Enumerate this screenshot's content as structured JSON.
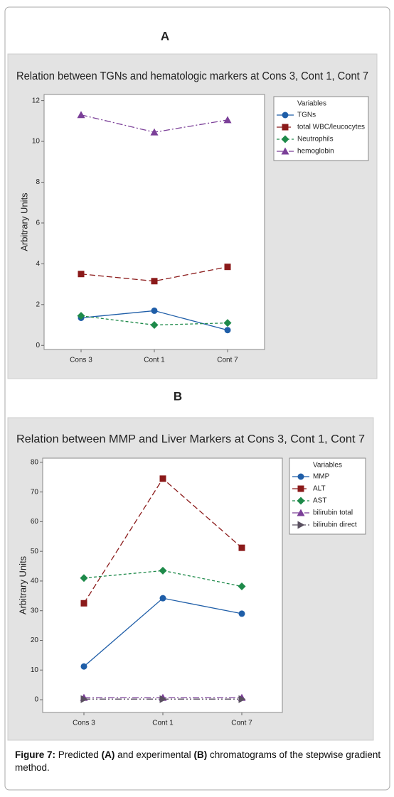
{
  "panel_labels": [
    "A",
    "B"
  ],
  "caption": [
    "Figure 7:",
    "Predicted",
    "(A)",
    "and experimental",
    "(B)",
    "chromatograms of the stepwise gradient method."
  ],
  "chart_data": [
    {
      "type": "line",
      "title": "Relation between TGNs and hematologic markers at Cons 3, Cont 1, Cont 7",
      "y_label": "Arbitrary Units",
      "legend_title": "Variables",
      "legend": "upper right",
      "categories": [
        "Cons 3",
        "Cont 1",
        "Cont 7"
      ],
      "ylim": [
        -0.2,
        12.3
      ],
      "yticks": [
        0,
        2,
        4,
        6,
        8,
        10,
        12
      ],
      "series": [
        {
          "name": "TGNs",
          "color": "#1f5ea8",
          "marker": "circle",
          "dash": "solid",
          "values": [
            1.35,
            1.7,
            0.75
          ]
        },
        {
          "name": "total WBC/leucocytes",
          "color": "#8b1a1a",
          "marker": "square",
          "dash": "dashed",
          "values": [
            3.5,
            3.15,
            3.85
          ]
        },
        {
          "name": "Neutrophils",
          "color": "#1e8a4a",
          "marker": "diamond",
          "dash": "short-dashed",
          "values": [
            1.45,
            1.0,
            1.1
          ]
        },
        {
          "name": "hemoglobin",
          "color": "#7b3f98",
          "marker": "triangle",
          "dash": "dash-dot",
          "values": [
            11.3,
            10.45,
            11.05
          ]
        }
      ]
    },
    {
      "type": "line",
      "title": "Relation between MMP and Liver Markers at Cons 3, Cont 1, Cont 7",
      "y_label": "Arbitrary Units",
      "legend_title": "Variables",
      "legend": "upper right",
      "categories": [
        "Cons 3",
        "Cont 1",
        "Cont 7"
      ],
      "ylim": [
        -4.3,
        81.4
      ],
      "yticks": [
        0,
        10,
        20,
        30,
        40,
        50,
        60,
        70,
        80
      ],
      "series": [
        {
          "name": "MMP",
          "color": "#1f5ea8",
          "marker": "circle",
          "dash": "solid",
          "values": [
            11.2,
            34.2,
            29
          ]
        },
        {
          "name": "ALT",
          "color": "#8b1a1a",
          "marker": "square",
          "dash": "dashed",
          "values": [
            32.5,
            74.5,
            51.2
          ]
        },
        {
          "name": "AST",
          "color": "#1e8a4a",
          "marker": "diamond",
          "dash": "short-dashed",
          "values": [
            41,
            43.5,
            38.2
          ]
        },
        {
          "name": "bilirubin total",
          "color": "#7b3f98",
          "marker": "triangle",
          "dash": "dash-dot",
          "values": [
            0.7,
            0.7,
            0.7
          ]
        },
        {
          "name": "bilirubin direct",
          "color": "#5a5060",
          "marker": "triangle-right",
          "dash": "dash-dot-dot",
          "values": [
            0.2,
            0.2,
            0.2
          ]
        }
      ]
    }
  ]
}
